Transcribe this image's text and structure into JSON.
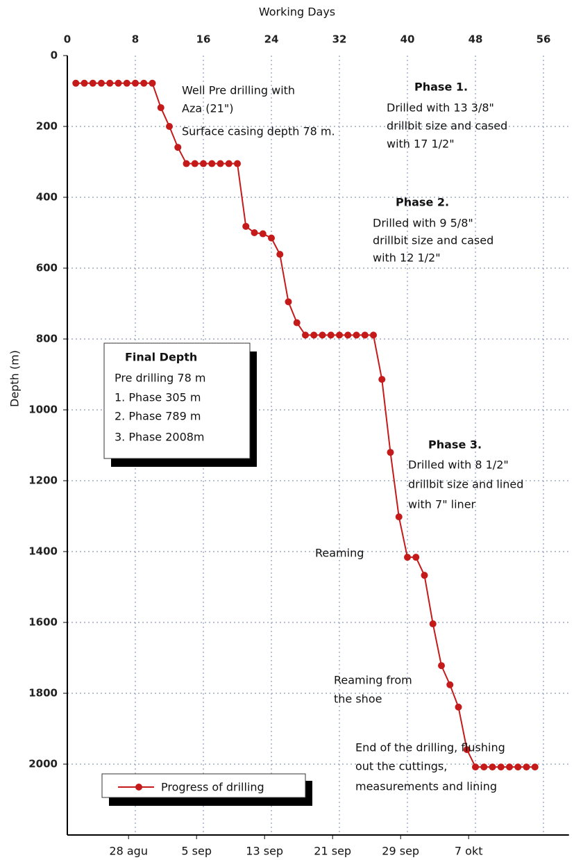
{
  "chart_data": {
    "type": "line",
    "title": "Working Days",
    "y_label": "Depth (m)",
    "xlim": [
      0,
      59
    ],
    "ylim": [
      0,
      2200
    ],
    "y_inverted": true,
    "grid": true,
    "xticks": [
      0,
      8,
      16,
      24,
      32,
      40,
      48,
      56
    ],
    "yticks": [
      0,
      200,
      400,
      600,
      800,
      1000,
      1200,
      1400,
      1600,
      1800,
      2000
    ],
    "x2ticks": [
      {
        "value": 7.2,
        "label": "28 agu"
      },
      {
        "value": 15.2,
        "label": "5 sep"
      },
      {
        "value": 23.2,
        "label": "13 sep"
      },
      {
        "value": 31.2,
        "label": "21 sep"
      },
      {
        "value": 39.2,
        "label": "29 sep"
      },
      {
        "value": 47.2,
        "label": "7 okt"
      }
    ],
    "legend": "lower left",
    "series": [
      {
        "name": "Progress of drilling",
        "color": "#c41a1a",
        "x": [
          1,
          2,
          3,
          4,
          5,
          6,
          7,
          8,
          9,
          10,
          11,
          12,
          13,
          14,
          15,
          16,
          17,
          18,
          19,
          20,
          21,
          22,
          23,
          24,
          25,
          26,
          27,
          28,
          29,
          30,
          31,
          32,
          33,
          34,
          35,
          36,
          37,
          38,
          39,
          40,
          41,
          42,
          43,
          44,
          45,
          46,
          47,
          48,
          49,
          50,
          51,
          52,
          53,
          54,
          55
        ],
        "values": [
          78,
          78,
          78,
          78,
          78,
          78,
          78,
          78,
          78,
          78,
          147,
          200,
          259,
          305,
          305,
          305,
          305,
          305,
          305,
          305,
          482,
          500,
          503,
          515,
          561,
          695,
          754,
          789,
          789,
          789,
          789,
          789,
          789,
          789,
          789,
          789,
          914,
          1120,
          1302,
          1416,
          1416,
          1467,
          1604,
          1722,
          1776,
          1839,
          1959,
          2008,
          2008,
          2008,
          2008,
          2008,
          2008,
          2008,
          2008
        ]
      }
    ],
    "annotations": [
      {
        "lines": [
          "Well Pre drilling with",
          "Aza (21\")",
          "Surface casing depth 78 m."
        ]
      },
      {
        "lines": [
          "Phase 1.",
          "Drilled with 13 3/8\"",
          "drillbit size and  cased",
          "with 17 1/2\""
        ]
      },
      {
        "lines": [
          "Phase 2.",
          "Drilled with 9 5/8\"",
          "drillbit size and cased",
          "with 12 1/2\""
        ]
      },
      {
        "lines": [
          "Phase 3.",
          "Drilled with 8 1/2\"",
          "drillbit size and lined",
          "with 7\" liner"
        ]
      },
      {
        "lines": [
          "Reaming"
        ]
      },
      {
        "lines": [
          "Reaming from",
          "the shoe"
        ]
      },
      {
        "lines": [
          "End of the drilling, flushing",
          "out the cuttings,",
          "measurements and lining"
        ]
      },
      {
        "lines": [
          "Final Depth",
          "Pre drilling 78 m",
          "1. Phase 305 m",
          "2. Phase 789 m",
          "3. Phase 2008m"
        ]
      }
    ]
  }
}
